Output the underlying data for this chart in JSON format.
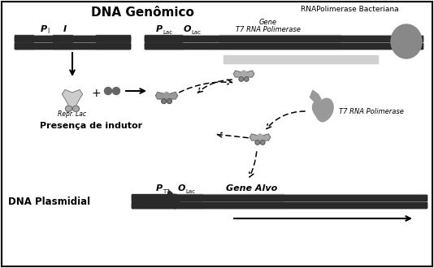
{
  "title": "DNA Genômico",
  "subtitle_rna": "RNAPolimerase Bacteriana",
  "label_repr": "Repr. Lac",
  "label_presenca": "Presença de indutor",
  "label_t7rna2": "T7 RNA Polimerase",
  "label_dna_plasmidial": "DNA Plasmidial",
  "label_gene_alvo": "Gene Alvo",
  "bg_color": "#ffffff",
  "border_color": "#000000",
  "dna_dark": "#2a2a2a",
  "dna_dark2": "#444444",
  "dna_mid": "#777777",
  "dna_light": "#aaaaaa",
  "dna_lighter": "#cccccc",
  "dna_lightest": "#e0e0e0",
  "protein_grey": "#999999",
  "protein_dark": "#666666",
  "rna_pol_color": "#888888"
}
